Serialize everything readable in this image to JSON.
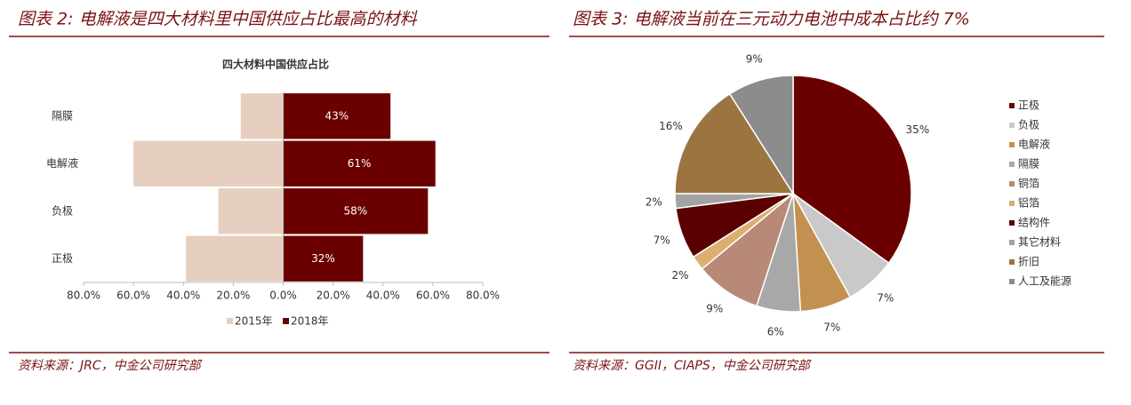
{
  "chart_data": [
    {
      "type": "bar",
      "orientation": "horizontal",
      "header": "图表 2:  电解液是四大材料里中国供应占比最高的材料",
      "title": "四大材料中国供应占比",
      "source": "资料来源：JRC，中金公司研究部",
      "categories": [
        "隔膜",
        "电解液",
        "负极",
        "正极"
      ],
      "series": [
        {
          "name": "2015年",
          "color": "#e6cfbf",
          "values": [
            -17,
            -60,
            -26,
            -39
          ]
        },
        {
          "name": "2018年",
          "color": "#6b0000",
          "values": [
            43,
            61,
            58,
            32
          ],
          "value_labels": [
            "43%",
            "61%",
            "58%",
            "32%"
          ]
        }
      ],
      "xlim": [
        -80,
        80
      ],
      "xticks": [
        {
          "value": -80,
          "label": "80.0%"
        },
        {
          "value": -60,
          "label": "60.0%"
        },
        {
          "value": -40,
          "label": "40.0%"
        },
        {
          "value": -20,
          "label": "20.0%"
        },
        {
          "value": 0,
          "label": "0.0%"
        },
        {
          "value": 20,
          "label": "20.0%"
        },
        {
          "value": 40,
          "label": "40.0%"
        },
        {
          "value": 60,
          "label": "60.0%"
        },
        {
          "value": 80,
          "label": "80.0%"
        }
      ],
      "legend": "bottom"
    },
    {
      "type": "pie",
      "header": "图表 3:  电解液当前在三元动力电池中成本占比约 7%",
      "source": "资料来源：GGII，CIAPS，中金公司研究部",
      "categories": [
        "正极",
        "负极",
        "电解液",
        "隔膜",
        "铜箔",
        "铝箔",
        "结构件",
        "其它材料",
        "折旧",
        "人工及能源"
      ],
      "values": [
        35,
        7,
        7,
        6,
        9,
        2,
        7,
        2,
        16,
        9
      ],
      "value_labels": [
        "35%",
        "7%",
        "7%",
        "6%",
        "9%",
        "2%",
        "7%",
        "2%",
        "16%",
        "9%"
      ],
      "colors": [
        "#6b0000",
        "#c9c9c9",
        "#c29150",
        "#a8a8a8",
        "#b88878",
        "#dcae70",
        "#5a0000",
        "#a3a3a3",
        "#9c7440",
        "#8c8c8c"
      ],
      "legend": "right"
    }
  ]
}
